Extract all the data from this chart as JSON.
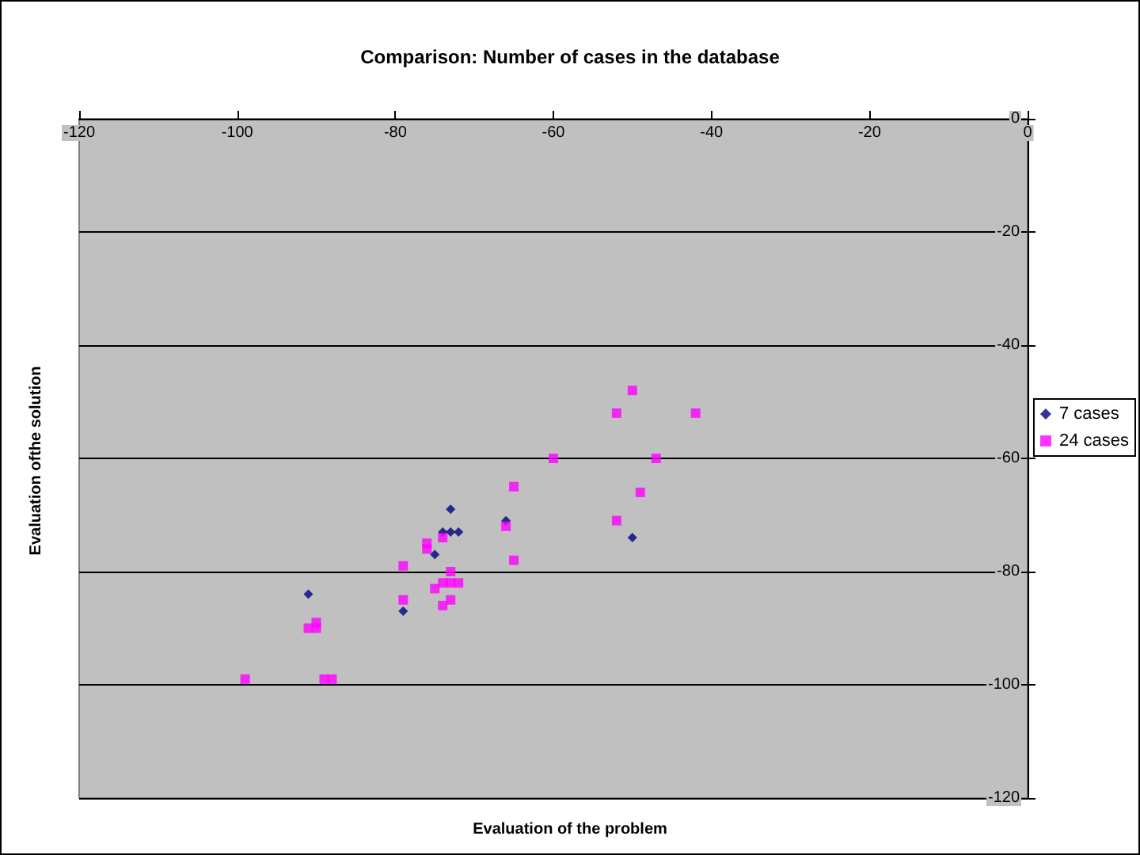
{
  "chart_data": {
    "type": "scatter",
    "title": "Comparison: Number of cases in the database",
    "xlabel": "Evaluation of the problem",
    "ylabel": "Evaluation ofthe solution",
    "xlim": [
      -120,
      0
    ],
    "xticks": [
      -120,
      -100,
      -80,
      -60,
      -40,
      -20,
      0
    ],
    "ylim": [
      -120,
      0
    ],
    "yticks": [
      -120,
      -100,
      -80,
      -60,
      -40,
      -20,
      0
    ],
    "grid": "y",
    "legend": "right",
    "series": [
      {
        "name": "7 cases",
        "color": "#000080",
        "marker": "diamond",
        "x": [
          -91,
          -79,
          -75,
          -74,
          -73,
          -72,
          -73,
          -66,
          -50
        ],
        "values": [
          -84,
          -87,
          -77,
          -73,
          -73,
          -73,
          -69,
          -71,
          -74
        ]
      },
      {
        "name": "24 cases",
        "color": "#ff00ff",
        "marker": "square",
        "x": [
          -65,
          -66,
          -65,
          -74,
          -76,
          -76,
          -79,
          -73,
          -74,
          -73,
          -72,
          -75,
          -79,
          -73,
          -74,
          -91,
          -90,
          -90,
          -99,
          -89,
          -88,
          -50,
          -52,
          -42,
          -60,
          -47,
          -49,
          -52
        ],
        "values": [
          -65,
          -72,
          -78,
          -74,
          -75,
          -76,
          -79,
          -80,
          -82,
          -82,
          -82,
          -83,
          -85,
          -85,
          -86,
          -90,
          -90,
          -89,
          -99,
          -99,
          -99,
          -48,
          -52,
          -52,
          -60,
          -60,
          -66,
          -71
        ]
      }
    ]
  }
}
